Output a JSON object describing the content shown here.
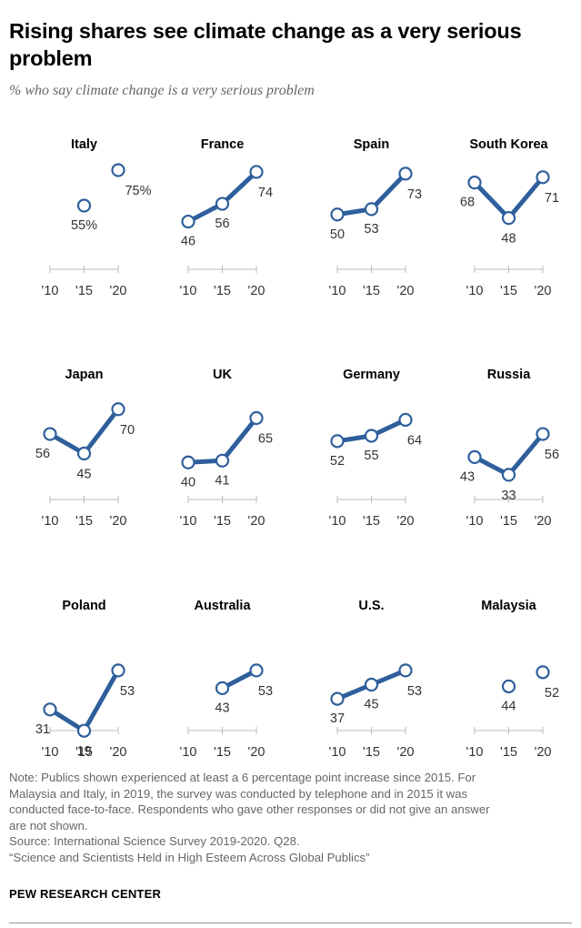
{
  "header": {
    "title": "Rising shares see climate change as a very serious problem",
    "subtitle": "% who say climate change is a very serious problem"
  },
  "chart_data": {
    "type": "line",
    "title": "Rising shares see climate change as a very serious problem",
    "subtitle": "% who say climate change is a very serious problem",
    "x": [
      2010,
      2015,
      2020
    ],
    "x_tick_labels": [
      "'10",
      "'15",
      "'20"
    ],
    "ylim": [
      0,
      100
    ],
    "grid": false,
    "line_color": "#2e5f9c",
    "series": [
      {
        "name": "Italy",
        "values": [
          null,
          55,
          75
        ],
        "labels": [
          "",
          "55%",
          "75%"
        ]
      },
      {
        "name": "France",
        "values": [
          46,
          56,
          74
        ],
        "labels": [
          "46",
          "56",
          "74"
        ]
      },
      {
        "name": "Spain",
        "values": [
          50,
          53,
          73
        ],
        "labels": [
          "50",
          "53",
          "73"
        ]
      },
      {
        "name": "South Korea",
        "values": [
          68,
          48,
          71
        ],
        "labels": [
          "68",
          "48",
          "71"
        ]
      },
      {
        "name": "Japan",
        "values": [
          56,
          45,
          70
        ],
        "labels": [
          "56",
          "45",
          "70"
        ]
      },
      {
        "name": "UK",
        "values": [
          40,
          41,
          65
        ],
        "labels": [
          "40",
          "41",
          "65"
        ]
      },
      {
        "name": "Germany",
        "values": [
          52,
          55,
          64
        ],
        "labels": [
          "52",
          "55",
          "64"
        ]
      },
      {
        "name": "Russia",
        "values": [
          43,
          33,
          56
        ],
        "labels": [
          "43",
          "33",
          "56"
        ]
      },
      {
        "name": "Poland",
        "values": [
          31,
          19,
          53
        ],
        "labels": [
          "31",
          "19",
          "53"
        ]
      },
      {
        "name": "Australia",
        "values": [
          null,
          43,
          53
        ],
        "labels": [
          "",
          "43",
          "53"
        ]
      },
      {
        "name": "U.S.",
        "values": [
          37,
          45,
          53
        ],
        "labels": [
          "37",
          "45",
          "53"
        ]
      },
      {
        "name": "Malaysia",
        "values": [
          null,
          44,
          52
        ],
        "labels": [
          "",
          "44",
          "52"
        ]
      }
    ]
  },
  "footer": {
    "note_lines": [
      "Note: Publics shown experienced at least a 6 percentage point increase since 2015. For",
      "Malaysia and Italy, in 2019, the survey was conducted by telephone and in 2015 it was",
      "conducted face-to-face. Respondents who gave other responses or did not give an answer",
      "are not shown."
    ],
    "source": "Source: International Science Survey 2019-2020. Q28.",
    "report": "“Science and Scientists Held in High Esteem Across Global Publics”",
    "brand": "PEW RESEARCH CENTER"
  }
}
